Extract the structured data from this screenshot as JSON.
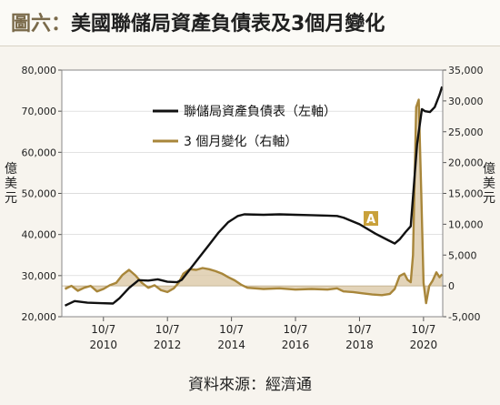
{
  "header": {
    "figure_label": "圖六",
    "separator": "：",
    "title": "美國聯儲局資產負債表及3個月變化"
  },
  "source": "資料來源：經濟通",
  "annotation_marker": "A",
  "colors": {
    "balance_line": "#111111",
    "change_line": "#a8863a",
    "change_fill": "#d9c6a2",
    "plot_bg": "#ffffff",
    "grid": "#d0d0d0",
    "marker_bg": "#c9a13b"
  },
  "chart_data": {
    "type": "line",
    "x_axis": {
      "ticks": [
        {
          "month": "10/7",
          "year": "2010",
          "t": 2010.5
        },
        {
          "month": "10/7",
          "year": "2012",
          "t": 2012.5
        },
        {
          "month": "10/7",
          "year": "2014",
          "t": 2014.5
        },
        {
          "month": "10/7",
          "year": "2016",
          "t": 2016.5
        },
        {
          "month": "10/7",
          "year": "2018",
          "t": 2018.5
        },
        {
          "month": "10/7",
          "year": "2020",
          "t": 2020.5
        }
      ],
      "range": [
        2009.2,
        2021.1
      ]
    },
    "y_left": {
      "label": "億美元",
      "range": [
        20000,
        80000
      ],
      "ticks": [
        "20,000",
        "30,000",
        "40,000",
        "50,000",
        "60,000",
        "70,000",
        "80,000"
      ]
    },
    "y_right": {
      "label": "億美元",
      "range": [
        -5000,
        35000
      ],
      "ticks": [
        "-5,000",
        "0",
        "5,000",
        "10,000",
        "15,000",
        "20,000",
        "25,000",
        "30,000",
        "35,000"
      ]
    },
    "legend_position": "top-center",
    "series": [
      {
        "name": "聯儲局資產負債表（左軸）",
        "axis": "left",
        "points": [
          [
            2009.3,
            22700
          ],
          [
            2009.6,
            23800
          ],
          [
            2010.0,
            23400
          ],
          [
            2010.4,
            23300
          ],
          [
            2010.8,
            23200
          ],
          [
            2011.0,
            24500
          ],
          [
            2011.3,
            27000
          ],
          [
            2011.6,
            28900
          ],
          [
            2011.9,
            28800
          ],
          [
            2012.2,
            29100
          ],
          [
            2012.5,
            28500
          ],
          [
            2012.8,
            28400
          ],
          [
            2012.95,
            29000
          ],
          [
            2013.2,
            31500
          ],
          [
            2013.5,
            34500
          ],
          [
            2013.8,
            37500
          ],
          [
            2014.1,
            40500
          ],
          [
            2014.4,
            43000
          ],
          [
            2014.7,
            44500
          ],
          [
            2014.9,
            44900
          ],
          [
            2015.5,
            44800
          ],
          [
            2016.0,
            44900
          ],
          [
            2016.5,
            44800
          ],
          [
            2017.0,
            44700
          ],
          [
            2017.5,
            44600
          ],
          [
            2017.8,
            44500
          ],
          [
            2018.0,
            44100
          ],
          [
            2018.5,
            42500
          ],
          [
            2019.0,
            40200
          ],
          [
            2019.4,
            38600
          ],
          [
            2019.6,
            37800
          ],
          [
            2019.75,
            38800
          ],
          [
            2019.95,
            40700
          ],
          [
            2020.1,
            42000
          ],
          [
            2020.2,
            52000
          ],
          [
            2020.3,
            62000
          ],
          [
            2020.45,
            70500
          ],
          [
            2020.55,
            70000
          ],
          [
            2020.7,
            69800
          ],
          [
            2020.85,
            71000
          ],
          [
            2021.0,
            74000
          ],
          [
            2021.08,
            76000
          ]
        ]
      },
      {
        "name": "3 個月變化（右軸）",
        "axis": "right",
        "points": [
          [
            2009.3,
            -500
          ],
          [
            2009.5,
            0
          ],
          [
            2009.7,
            -800
          ],
          [
            2009.9,
            -300
          ],
          [
            2010.1,
            0
          ],
          [
            2010.3,
            -900
          ],
          [
            2010.5,
            -500
          ],
          [
            2010.7,
            100
          ],
          [
            2010.9,
            500
          ],
          [
            2011.1,
            1800
          ],
          [
            2011.3,
            2600
          ],
          [
            2011.5,
            1700
          ],
          [
            2011.7,
            500
          ],
          [
            2011.9,
            -300
          ],
          [
            2012.1,
            100
          ],
          [
            2012.3,
            -700
          ],
          [
            2012.5,
            -1000
          ],
          [
            2012.7,
            -400
          ],
          [
            2012.85,
            500
          ],
          [
            2013.0,
            2000
          ],
          [
            2013.2,
            2700
          ],
          [
            2013.4,
            2600
          ],
          [
            2013.6,
            2900
          ],
          [
            2013.8,
            2700
          ],
          [
            2014.0,
            2400
          ],
          [
            2014.2,
            2000
          ],
          [
            2014.4,
            1400
          ],
          [
            2014.6,
            900
          ],
          [
            2014.8,
            200
          ],
          [
            2015.0,
            -300
          ],
          [
            2015.5,
            -500
          ],
          [
            2016.0,
            -400
          ],
          [
            2016.5,
            -600
          ],
          [
            2017.0,
            -500
          ],
          [
            2017.5,
            -600
          ],
          [
            2017.8,
            -400
          ],
          [
            2018.0,
            -900
          ],
          [
            2018.3,
            -1000
          ],
          [
            2018.6,
            -1200
          ],
          [
            2018.9,
            -1400
          ],
          [
            2019.2,
            -1500
          ],
          [
            2019.45,
            -1300
          ],
          [
            2019.6,
            -500
          ],
          [
            2019.75,
            1600
          ],
          [
            2019.9,
            2000
          ],
          [
            2020.0,
            1000
          ],
          [
            2020.1,
            600
          ],
          [
            2020.17,
            5000
          ],
          [
            2020.27,
            29000
          ],
          [
            2020.35,
            30200
          ],
          [
            2020.43,
            15000
          ],
          [
            2020.5,
            500
          ],
          [
            2020.58,
            -2800
          ],
          [
            2020.68,
            0
          ],
          [
            2020.78,
            800
          ],
          [
            2020.9,
            2200
          ],
          [
            2021.0,
            1400
          ],
          [
            2021.08,
            1900
          ]
        ]
      }
    ]
  }
}
